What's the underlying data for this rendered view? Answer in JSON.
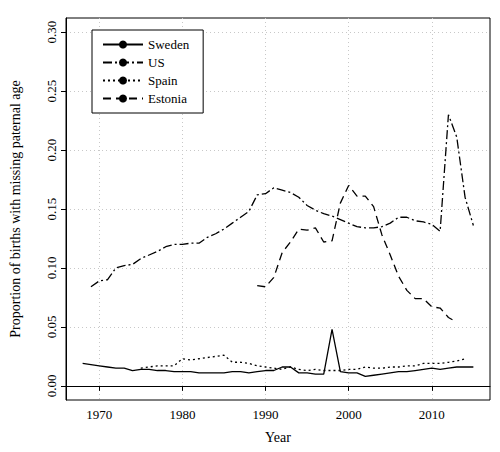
{
  "chart_data": {
    "type": "line",
    "x_label": "Year",
    "y_label": "Proportion of births with missing paternal age",
    "x": [
      1968,
      1969,
      1970,
      1971,
      1972,
      1973,
      1974,
      1975,
      1976,
      1977,
      1978,
      1979,
      1980,
      1981,
      1982,
      1983,
      1984,
      1985,
      1986,
      1987,
      1988,
      1989,
      1990,
      1991,
      1992,
      1993,
      1994,
      1995,
      1996,
      1997,
      1998,
      1999,
      2000,
      2001,
      2002,
      2003,
      2004,
      2005,
      2006,
      2007,
      2008,
      2009,
      2010,
      2011,
      2012,
      2013,
      2014,
      2015
    ],
    "series": [
      {
        "name": "Sweden",
        "color": "#000000",
        "line_style": "solid",
        "values": [
          0.019,
          0.018,
          0.017,
          0.016,
          0.015,
          0.015,
          0.013,
          0.014,
          0.014,
          0.013,
          0.013,
          0.012,
          0.012,
          0.012,
          0.011,
          0.011,
          0.011,
          0.011,
          0.012,
          0.012,
          0.011,
          0.012,
          0.013,
          0.013,
          0.016,
          0.016,
          0.011,
          0.011,
          0.01,
          0.01,
          0.048,
          0.012,
          0.011,
          0.011,
          0.008,
          0.009,
          0.01,
          0.011,
          0.012,
          0.012,
          0.013,
          0.014,
          0.015,
          0.014,
          0.015,
          0.016,
          0.016,
          0.016
        ]
      },
      {
        "name": "US",
        "color": "#000000",
        "line_style": "dashdot",
        "values": [
          null,
          0.084,
          0.089,
          0.09,
          0.1,
          0.102,
          0.103,
          0.108,
          0.111,
          0.114,
          0.118,
          0.12,
          0.12,
          0.121,
          0.121,
          0.126,
          0.129,
          0.133,
          0.138,
          0.143,
          0.148,
          0.162,
          0.163,
          0.168,
          0.166,
          0.164,
          0.16,
          0.153,
          0.149,
          0.146,
          0.144,
          0.141,
          0.138,
          0.135,
          0.134,
          0.134,
          0.135,
          0.138,
          0.143,
          0.143,
          0.14,
          0.139,
          0.137,
          0.131,
          0.23,
          0.211,
          0.16,
          0.136
        ]
      },
      {
        "name": "Spain",
        "color": "#000000",
        "line_style": "dotted",
        "values": [
          null,
          null,
          null,
          null,
          null,
          null,
          null,
          0.015,
          0.016,
          0.017,
          0.017,
          0.017,
          0.023,
          0.022,
          0.023,
          0.024,
          0.025,
          0.026,
          0.02,
          0.02,
          0.019,
          0.017,
          0.016,
          0.015,
          0.014,
          0.016,
          0.014,
          0.013,
          0.014,
          0.013,
          0.013,
          0.013,
          0.014,
          0.014,
          0.016,
          0.015,
          0.015,
          0.016,
          0.016,
          0.017,
          0.017,
          0.019,
          0.019,
          0.019,
          0.02,
          0.021,
          0.023,
          null
        ]
      },
      {
        "name": "Estonia",
        "color": "#000000",
        "line_style": "dashed",
        "values": [
          null,
          null,
          null,
          null,
          null,
          null,
          null,
          null,
          null,
          null,
          null,
          null,
          null,
          null,
          null,
          null,
          null,
          null,
          null,
          null,
          null,
          0.085,
          0.084,
          0.092,
          0.113,
          0.122,
          0.133,
          0.132,
          0.134,
          0.122,
          0.123,
          0.155,
          0.17,
          0.161,
          0.161,
          0.152,
          0.128,
          0.111,
          0.093,
          0.081,
          0.074,
          0.074,
          0.067,
          0.066,
          0.058,
          0.054,
          null,
          null
        ]
      }
    ],
    "xlim": [
      1966,
      2017
    ],
    "xticks": [
      1970,
      1980,
      1990,
      2000,
      2010
    ],
    "ylim": [
      -0.012,
      0.312
    ],
    "yticks": [
      {
        "value": 0,
        "label": "0.00"
      },
      {
        "value": 0.05,
        "label": "0.05"
      },
      {
        "value": 0.1,
        "label": "0.10"
      },
      {
        "value": 0.15,
        "label": "0.15"
      },
      {
        "value": 0.2,
        "label": "0.20"
      },
      {
        "value": 0.25,
        "label": "0.25"
      },
      {
        "value": 0.3,
        "label": "0.30"
      }
    ],
    "grid": true,
    "legend": "topleft"
  }
}
